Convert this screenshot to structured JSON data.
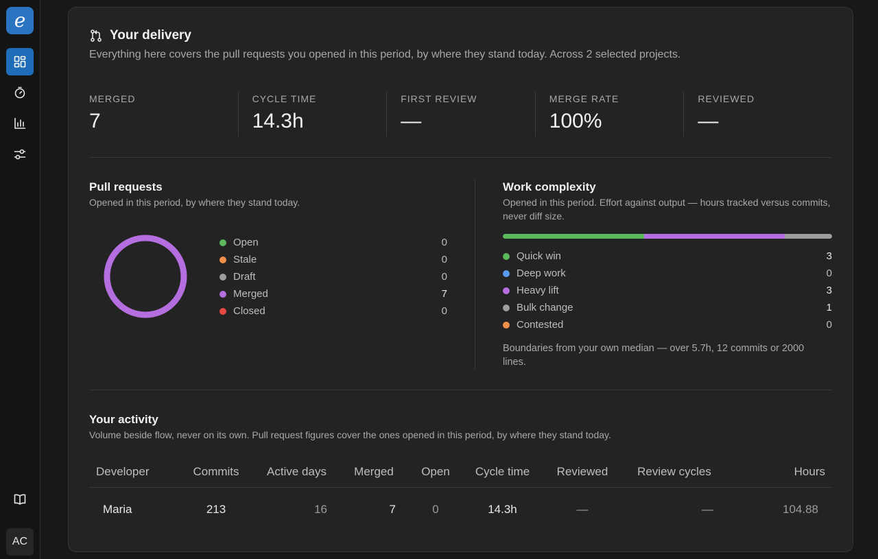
{
  "sidebar": {
    "logo": "e",
    "avatar": "AC",
    "nav_icons": [
      "dashboard-icon",
      "stopwatch-icon",
      "bar-chart-icon",
      "sliders-icon",
      "book-icon"
    ]
  },
  "delivery": {
    "title": "Your delivery",
    "subtitle": "Everything here covers the pull requests you opened in this period, by where they stand today. Across 2 selected projects.",
    "stats": [
      {
        "label": "MERGED",
        "value": "7"
      },
      {
        "label": "CYCLE TIME",
        "value": "14.3h"
      },
      {
        "label": "FIRST REVIEW",
        "value": "—"
      },
      {
        "label": "MERGE RATE",
        "value": "100%"
      },
      {
        "label": "REVIEWED",
        "value": "—"
      }
    ]
  },
  "pull_requests": {
    "title": "Pull requests",
    "subtitle": "Opened in this period, by where they stand today.",
    "legend": [
      {
        "label": "Open",
        "count": "0",
        "color": "#5cb85c"
      },
      {
        "label": "Stale",
        "count": "0",
        "color": "#f0904a"
      },
      {
        "label": "Draft",
        "count": "0",
        "color": "#9e9e9e"
      },
      {
        "label": "Merged",
        "count": "7",
        "color": "#b56ee0"
      },
      {
        "label": "Closed",
        "count": "0",
        "color": "#e5483f"
      }
    ]
  },
  "complexity": {
    "title": "Work complexity",
    "subtitle": "Opened in this period. Effort against output — hours tracked versus commits, never diff size.",
    "legend": [
      {
        "label": "Quick win",
        "count": "3",
        "color": "#5cb85c"
      },
      {
        "label": "Deep work",
        "count": "0",
        "color": "#5b9bef"
      },
      {
        "label": "Heavy lift",
        "count": "3",
        "color": "#b56ee0"
      },
      {
        "label": "Bulk change",
        "count": "1",
        "color": "#9e9e9e"
      },
      {
        "label": "Contested",
        "count": "0",
        "color": "#f0904a"
      }
    ],
    "note": "Boundaries from your own median — over 5.7h, 12 commits or 2000 lines."
  },
  "activity": {
    "title": "Your activity",
    "subtitle": "Volume beside flow, never on its own. Pull request figures cover the ones opened in this period, by where they stand today.",
    "headers": [
      "Developer",
      "Commits",
      "Active days",
      "Merged",
      "Open",
      "Cycle time",
      "Reviewed",
      "Review cycles",
      "Hours"
    ],
    "rows": [
      [
        "Maria",
        "213",
        "16",
        "7",
        "0",
        "14.3h",
        "—",
        "—",
        "104.88"
      ]
    ]
  }
}
